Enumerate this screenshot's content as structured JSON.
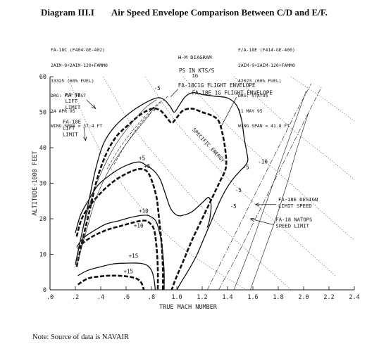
{
  "diagram_label": "Diagram III.I",
  "title": "Air Speed Envelope Comparison Between C/D and E/F.",
  "left_block": [
    "FA-18C (F404-GE-402)",
    "2AIM-9+2AIM-120+FAMMO",
    "33325 (60% FUEL)",
    "DRG: FLT TEST",
    "24 APR 95",
    "WING SPAN = 37.4 FT"
  ],
  "center_block": [
    "H-M DIAGRAM",
    "1G"
  ],
  "right_block": [
    "F/A-18E (F414-GE-400)",
    "2AIM-9+2AIM-120+FAMMO",
    "42023 (60% FUEL)",
    "DRG: STATUS",
    "11 MAY 95",
    "WING SPAN = 41.8 FT"
  ],
  "ps_label": "PS IN KTS/S",
  "note": "Note:  Source of data is NAVAIR",
  "chart_data": {
    "type": "line",
    "xlabel": "TRUE MACH NUMBER",
    "ylabel": "ALTITUDE-1000 FEET",
    "xlim": [
      0.0,
      2.4
    ],
    "ylim": [
      0,
      60
    ],
    "xticks": [
      ".0",
      ".2",
      ".4",
      ".6",
      ".8",
      "1.0",
      "1.2",
      "1.4",
      "1.6",
      "1.8",
      "2.0",
      "2.2",
      "2.4"
    ],
    "yticks": [
      "0",
      "10",
      "20",
      "30",
      "40",
      "50",
      "60"
    ],
    "series": [
      {
        "name": "FA-18C 1G FLIGHT ENVELOPE",
        "style": "solid",
        "points": [
          [
            0.2,
            7
          ],
          [
            0.24,
            14
          ],
          [
            0.3,
            24
          ],
          [
            0.36,
            34
          ],
          [
            0.42,
            41
          ],
          [
            0.5,
            45.5
          ],
          [
            0.6,
            49
          ],
          [
            0.72,
            52
          ],
          [
            0.84,
            54
          ],
          [
            0.9,
            53.5
          ],
          [
            0.95,
            51.5
          ],
          [
            0.98,
            50
          ],
          [
            1.02,
            52
          ],
          [
            1.07,
            54.5
          ],
          [
            1.13,
            55.5
          ],
          [
            1.2,
            55
          ],
          [
            1.3,
            54.5
          ],
          [
            1.4,
            54
          ],
          [
            1.47,
            52
          ],
          [
            1.51,
            48
          ],
          [
            1.53,
            43
          ],
          [
            1.55,
            39
          ],
          [
            1.56,
            36.5
          ],
          [
            1.54,
            35
          ],
          [
            1.5,
            33.5
          ],
          [
            1.45,
            31.5
          ],
          [
            1.4,
            29
          ],
          [
            1.34,
            25
          ],
          [
            1.28,
            20
          ],
          [
            1.22,
            15
          ],
          [
            1.16,
            10
          ],
          [
            1.1,
            6
          ],
          [
            1.04,
            2.5
          ],
          [
            1.0,
            0
          ]
        ]
      },
      {
        "name": "FA-18E 1G FLIGHT ENVELOPE",
        "style": "dashed",
        "points": [
          [
            0.21,
            6.5
          ],
          [
            0.25,
            13
          ],
          [
            0.31,
            22
          ],
          [
            0.37,
            31
          ],
          [
            0.44,
            38
          ],
          [
            0.52,
            43
          ],
          [
            0.62,
            46.5
          ],
          [
            0.72,
            49.5
          ],
          [
            0.81,
            51
          ],
          [
            0.87,
            50.5
          ],
          [
            0.92,
            48.5
          ],
          [
            0.96,
            47
          ],
          [
            1.0,
            48.5
          ],
          [
            1.05,
            50.5
          ],
          [
            1.12,
            51
          ],
          [
            1.2,
            50
          ],
          [
            1.28,
            49
          ],
          [
            1.33,
            47.5
          ],
          [
            1.36,
            44
          ],
          [
            1.38,
            40
          ],
          [
            1.39,
            36
          ],
          [
            1.38,
            33.5
          ],
          [
            1.34,
            30.5
          ],
          [
            1.28,
            26
          ],
          [
            1.2,
            20
          ],
          [
            1.12,
            14
          ],
          [
            1.05,
            8
          ],
          [
            0.99,
            3
          ],
          [
            0.96,
            0
          ]
        ]
      },
      {
        "name": "FA-18C PS=+5",
        "style": "solid",
        "points": [
          [
            0.2,
            16
          ],
          [
            0.24,
            21
          ],
          [
            0.3,
            25
          ],
          [
            0.38,
            29.5
          ],
          [
            0.5,
            33
          ],
          [
            0.6,
            35
          ],
          [
            0.7,
            36
          ],
          [
            0.76,
            35
          ],
          [
            0.82,
            33.5
          ],
          [
            0.87,
            31
          ],
          [
            0.91,
            27
          ],
          [
            0.95,
            23
          ],
          [
            1.0,
            21
          ],
          [
            1.05,
            21
          ],
          [
            1.12,
            22
          ],
          [
            1.2,
            24.5
          ],
          [
            1.25,
            26
          ],
          [
            1.27,
            24
          ],
          [
            1.26,
            20
          ],
          [
            1.24,
            17.5
          ]
        ]
      },
      {
        "name": "FA-18E PS=+5",
        "style": "dashed",
        "points": [
          [
            0.21,
            15
          ],
          [
            0.25,
            20
          ],
          [
            0.32,
            24
          ],
          [
            0.42,
            28
          ],
          [
            0.52,
            31
          ],
          [
            0.62,
            33
          ],
          [
            0.7,
            34
          ],
          [
            0.76,
            33.5
          ],
          [
            0.8,
            31
          ],
          [
            0.84,
            26
          ],
          [
            0.86,
            20
          ],
          [
            0.88,
            13
          ],
          [
            0.89,
            6
          ],
          [
            0.89,
            0
          ]
        ]
      },
      {
        "name": "FA-18C PS=+10",
        "style": "solid",
        "points": [
          [
            0.21,
            12
          ],
          [
            0.26,
            14.5
          ],
          [
            0.34,
            16.5
          ],
          [
            0.44,
            18.5
          ],
          [
            0.55,
            19.5
          ],
          [
            0.65,
            20.5
          ],
          [
            0.75,
            21
          ],
          [
            0.8,
            20.5
          ],
          [
            0.84,
            19
          ],
          [
            0.87,
            15
          ],
          [
            0.89,
            10
          ],
          [
            0.9,
            5
          ],
          [
            0.9,
            0
          ]
        ]
      },
      {
        "name": "FA-18E PS=+10",
        "style": "dashed",
        "points": [
          [
            0.22,
            11.5
          ],
          [
            0.27,
            13.5
          ],
          [
            0.36,
            15.5
          ],
          [
            0.46,
            17
          ],
          [
            0.56,
            18
          ],
          [
            0.66,
            19
          ],
          [
            0.74,
            19.5
          ],
          [
            0.78,
            19
          ],
          [
            0.82,
            17
          ],
          [
            0.84,
            12
          ],
          [
            0.85,
            6
          ],
          [
            0.85,
            0
          ]
        ]
      },
      {
        "name": "FA-18C PS=+15",
        "style": "solid",
        "points": [
          [
            0.22,
            4
          ],
          [
            0.3,
            5.5
          ],
          [
            0.4,
            6.5
          ],
          [
            0.5,
            7.3
          ],
          [
            0.6,
            7.5
          ],
          [
            0.7,
            7.5
          ],
          [
            0.76,
            7
          ],
          [
            0.8,
            5.5
          ],
          [
            0.82,
            3
          ],
          [
            0.83,
            0
          ]
        ]
      },
      {
        "name": "FA-18E PS=+15",
        "style": "dashed",
        "points": [
          [
            0.22,
            1.5
          ],
          [
            0.3,
            3.2
          ],
          [
            0.4,
            3.8
          ],
          [
            0.5,
            4
          ],
          [
            0.6,
            3.8
          ],
          [
            0.68,
            3.2
          ],
          [
            0.72,
            2
          ],
          [
            0.74,
            0
          ]
        ]
      },
      {
        "name": "FA-18 LIFT LIMIT",
        "style": "thin",
        "points": [
          [
            0.2,
            7.5
          ],
          [
            0.22,
            11
          ],
          [
            0.26,
            17
          ],
          [
            0.32,
            25
          ],
          [
            0.38,
            31
          ],
          [
            0.45,
            36.5
          ],
          [
            0.52,
            41
          ],
          [
            0.6,
            45
          ],
          [
            0.68,
            48.5
          ],
          [
            0.76,
            51.5
          ],
          [
            0.84,
            53.5
          ]
        ]
      },
      {
        "name": "FA-18E LIFT LIMIT",
        "style": "thin",
        "points": [
          [
            0.21,
            6.8
          ],
          [
            0.25,
            12
          ],
          [
            0.29,
            17
          ],
          [
            0.35,
            24.5
          ],
          [
            0.4,
            29
          ],
          [
            0.47,
            34
          ],
          [
            0.55,
            38.5
          ],
          [
            0.63,
            42.5
          ],
          [
            0.72,
            46.5
          ],
          [
            0.8,
            50
          ]
        ]
      },
      {
        "name": "FA-18E DESIGN LIMIT SPEED",
        "style": "dashdot",
        "points": [
          [
            1.33,
            0
          ],
          [
            1.48,
            10
          ],
          [
            1.62,
            20
          ],
          [
            1.76,
            30
          ],
          [
            1.9,
            40
          ],
          [
            2.04,
            50
          ],
          [
            2.14,
            57
          ]
        ]
      },
      {
        "name": "FA-18 NATOPS SPEED LIMIT",
        "style": "dashdot",
        "points": [
          [
            1.24,
            0
          ],
          [
            1.38,
            10
          ],
          [
            1.52,
            20
          ],
          [
            1.66,
            30
          ],
          [
            1.8,
            40
          ],
          [
            1.94,
            50
          ],
          [
            2.06,
            58
          ]
        ]
      },
      {
        "name": "PS=-5 (right)",
        "style": "thin",
        "points": [
          [
            1.45,
            0
          ],
          [
            1.56,
            10
          ],
          [
            1.66,
            20
          ],
          [
            1.76,
            30
          ],
          [
            1.86,
            40
          ],
          [
            1.96,
            50
          ],
          [
            2.02,
            56
          ]
        ]
      },
      {
        "name": "PS=-10",
        "style": "thin",
        "points": [
          [
            1.58,
            0
          ],
          [
            1.68,
            10
          ],
          [
            1.78,
            20
          ],
          [
            1.87,
            30
          ],
          [
            1.95,
            40
          ],
          [
            2.04,
            50
          ]
        ]
      }
    ],
    "ps_top_curves": [
      {
        "label": "+5",
        "points": [
          [
            0.87,
            53
          ],
          [
            0.78,
            50
          ],
          [
            0.68,
            46
          ],
          [
            0.55,
            40
          ],
          [
            0.45,
            34
          ]
        ]
      },
      {
        "label": "-5",
        "points": [
          [
            0.93,
            54.5
          ],
          [
            0.82,
            51
          ],
          [
            0.72,
            47
          ],
          [
            0.6,
            41
          ],
          [
            0.5,
            35
          ]
        ]
      }
    ],
    "specific_energy_lines": [
      [
        [
          0.14,
          60
        ],
        [
          0.3,
          46
        ],
        [
          0.5,
          33
        ],
        [
          0.75,
          22
        ],
        [
          1.0,
          13
        ],
        [
          1.3,
          5.5
        ],
        [
          1.55,
          0
        ]
      ],
      [
        [
          0.42,
          60
        ],
        [
          0.65,
          46
        ],
        [
          0.9,
          35
        ],
        [
          1.15,
          25
        ],
        [
          1.4,
          16
        ],
        [
          1.65,
          8
        ],
        [
          1.9,
          0
        ]
      ],
      [
        [
          0.75,
          60
        ],
        [
          1.0,
          47
        ],
        [
          1.25,
          37
        ],
        [
          1.5,
          28
        ],
        [
          1.75,
          20
        ],
        [
          2.0,
          12
        ],
        [
          2.25,
          4
        ]
      ],
      [
        [
          1.05,
          60
        ],
        [
          1.3,
          50
        ],
        [
          1.55,
          41
        ],
        [
          1.8,
          33
        ],
        [
          2.05,
          25
        ],
        [
          2.3,
          17
        ],
        [
          2.4,
          14
        ]
      ],
      [
        [
          1.45,
          60
        ],
        [
          1.7,
          52
        ],
        [
          1.95,
          44
        ],
        [
          2.2,
          37
        ],
        [
          2.4,
          31
        ]
      ],
      [
        [
          1.9,
          60
        ],
        [
          2.15,
          54
        ],
        [
          2.4,
          47.5
        ]
      ]
    ],
    "annotations": [
      {
        "text": "FA-18C1G FLIGHT ENVELOPE",
        "pos": [
          1.01,
          57
        ]
      },
      {
        "text": "FA-18E 1G FLIGHT ENVELOPE",
        "pos": [
          1.12,
          55
        ]
      },
      {
        "text": "SPECIFIC ENERGY",
        "pos": [
          1.12,
          45
        ]
      },
      {
        "text": "+5",
        "pos": [
          0.78,
          50.3
        ]
      },
      {
        "text": "-5",
        "pos": [
          0.82,
          56.2
        ]
      },
      {
        "text": "+5",
        "pos": [
          0.7,
          36.5
        ]
      },
      {
        "text": "+5",
        "pos": [
          0.74,
          34.3
        ]
      },
      {
        "text": "+10",
        "pos": [
          0.7,
          21.7
        ]
      },
      {
        "text": "+10",
        "pos": [
          0.66,
          17.5
        ]
      },
      {
        "text": "+15",
        "pos": [
          0.62,
          9
        ]
      },
      {
        "text": "+15",
        "pos": [
          0.58,
          4.7
        ]
      },
      {
        "text": "-5",
        "pos": [
          1.52,
          34
        ]
      },
      {
        "text": "-10",
        "pos": [
          1.64,
          35.5
        ]
      },
      {
        "text": "-5",
        "pos": [
          1.46,
          27.5
        ]
      },
      {
        "text": "-5",
        "pos": [
          1.42,
          23
        ]
      }
    ],
    "side_labels": [
      {
        "lines": [
          "FA-18",
          "LIFT",
          "LIMIT"
        ],
        "pos": [
          0.12,
          54.5
        ],
        "arrow_to": [
          0.36,
          51
        ]
      },
      {
        "lines": [
          "FA-18E",
          "LIFT",
          "LIMIT"
        ],
        "pos": [
          0.1,
          46.8
        ],
        "arrow_to": [
          0.28,
          42
        ]
      },
      {
        "lines": [
          "FA-18E DESIGN",
          "LIMIT SPEED"
        ],
        "pos": [
          1.8,
          25
        ],
        "arrow_to": [
          1.62,
          24
        ]
      },
      {
        "lines": [
          "FA-18 NATOPS",
          "SPEED LIMIT"
        ],
        "pos": [
          1.78,
          19.3
        ],
        "arrow_to": [
          1.58,
          20
        ]
      }
    ]
  }
}
